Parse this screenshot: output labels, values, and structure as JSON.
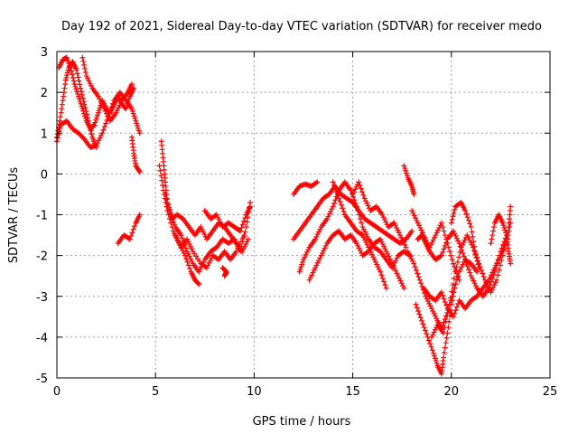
{
  "chart_data": {
    "type": "scatter",
    "title": "Day 192 of 2021, Sidereal Day-to-day VTEC variation (SDTVAR) for receiver medo",
    "xlabel": "GPS time / hours",
    "ylabel": "SDTVAR / TECUs",
    "xlim": [
      0,
      25
    ],
    "ylim": [
      -5,
      3
    ],
    "xticks": [
      0,
      5,
      10,
      15,
      20,
      25
    ],
    "yticks": [
      -5,
      -4,
      -3,
      -2,
      -1,
      0,
      1,
      2,
      3
    ],
    "xtick_labels": [
      "0",
      "5",
      "10",
      "15",
      "20",
      "25"
    ],
    "ytick_labels": [
      "-5",
      "-4",
      "-3",
      "-2",
      "-1",
      "0",
      "1",
      "2",
      "3"
    ],
    "grid": true,
    "marker": "plus",
    "color": "#ff0000",
    "tracks": [
      [
        [
          0.0,
          0.8
        ],
        [
          0.2,
          1.2
        ],
        [
          0.5,
          1.3
        ],
        [
          0.8,
          1.1
        ],
        [
          1.1,
          1.0
        ],
        [
          1.4,
          0.85
        ],
        [
          1.7,
          0.65
        ],
        [
          2.0,
          0.7
        ],
        [
          2.3,
          1.0
        ],
        [
          2.6,
          1.4
        ],
        [
          2.9,
          1.8
        ],
        [
          3.2,
          2.0
        ],
        [
          3.5,
          1.8
        ],
        [
          3.8,
          1.6
        ],
        [
          4.0,
          1.3
        ],
        [
          4.2,
          1.0
        ]
      ],
      [
        [
          0.1,
          2.6
        ],
        [
          0.3,
          2.8
        ],
        [
          0.5,
          2.85
        ],
        [
          0.7,
          2.6
        ],
        [
          0.9,
          2.2
        ],
        [
          1.1,
          1.9
        ],
        [
          1.3,
          1.6
        ],
        [
          1.5,
          1.3
        ],
        [
          1.7,
          1.1
        ],
        [
          1.9,
          1.2
        ],
        [
          2.1,
          1.5
        ],
        [
          2.3,
          1.8
        ],
        [
          2.5,
          1.6
        ],
        [
          2.7,
          1.5
        ],
        [
          2.9,
          1.7
        ],
        [
          3.1,
          1.9
        ],
        [
          3.3,
          1.7
        ],
        [
          3.5,
          1.6
        ],
        [
          3.7,
          1.9
        ],
        [
          3.9,
          2.1
        ]
      ],
      [
        [
          0.0,
          0.9
        ],
        [
          0.15,
          1.3
        ],
        [
          0.3,
          1.8
        ],
        [
          0.45,
          2.3
        ],
        [
          0.6,
          2.6
        ],
        [
          0.8,
          2.75
        ],
        [
          1.0,
          2.55
        ],
        [
          1.2,
          2.1
        ],
        [
          1.4,
          1.7
        ],
        [
          1.6,
          1.3
        ],
        [
          1.8,
          0.9
        ],
        [
          2.0,
          0.65
        ]
      ],
      [
        [
          1.3,
          2.85
        ],
        [
          1.5,
          2.4
        ],
        [
          1.8,
          2.1
        ],
        [
          2.1,
          1.9
        ],
        [
          2.4,
          1.6
        ],
        [
          2.7,
          1.3
        ],
        [
          3.0,
          1.5
        ],
        [
          3.3,
          1.8
        ],
        [
          3.6,
          2.0
        ],
        [
          3.8,
          2.2
        ]
      ],
      [
        [
          3.8,
          0.9
        ],
        [
          3.9,
          0.5
        ],
        [
          4.0,
          0.2
        ],
        [
          4.2,
          0.05
        ]
      ],
      [
        [
          3.1,
          -1.7
        ],
        [
          3.4,
          -1.5
        ],
        [
          3.7,
          -1.6
        ],
        [
          4.0,
          -1.2
        ],
        [
          4.2,
          -1.0
        ]
      ],
      [
        [
          5.3,
          0.8
        ],
        [
          5.4,
          0.3
        ],
        [
          5.5,
          -0.2
        ],
        [
          5.6,
          -0.7
        ],
        [
          5.8,
          -1.0
        ],
        [
          6.0,
          -1.3
        ],
        [
          6.3,
          -1.5
        ],
        [
          6.6,
          -1.9
        ],
        [
          6.9,
          -2.2
        ],
        [
          7.2,
          -2.4
        ],
        [
          7.5,
          -2.1
        ],
        [
          7.8,
          -1.9
        ],
        [
          8.1,
          -1.8
        ],
        [
          8.4,
          -1.6
        ],
        [
          8.7,
          -1.7
        ],
        [
          9.0,
          -1.6
        ],
        [
          9.3,
          -1.9
        ],
        [
          9.6,
          -1.3
        ],
        [
          9.8,
          -0.7
        ]
      ],
      [
        [
          5.2,
          0.2
        ],
        [
          5.4,
          -0.4
        ],
        [
          5.6,
          -0.9
        ],
        [
          5.9,
          -1.4
        ],
        [
          6.2,
          -1.7
        ],
        [
          6.5,
          -2.0
        ],
        [
          6.8,
          -2.4
        ],
        [
          7.0,
          -2.6
        ],
        [
          7.2,
          -2.7
        ]
      ],
      [
        [
          5.5,
          -0.5
        ],
        [
          5.8,
          -1.1
        ],
        [
          6.1,
          -1.0
        ],
        [
          6.4,
          -1.1
        ],
        [
          6.7,
          -1.3
        ],
        [
          7.0,
          -1.5
        ],
        [
          7.3,
          -1.3
        ],
        [
          7.6,
          -1.6
        ],
        [
          7.9,
          -1.4
        ],
        [
          8.2,
          -1.2
        ],
        [
          8.5,
          -1.3
        ],
        [
          8.8,
          -1.5
        ],
        [
          9.1,
          -1.7
        ],
        [
          9.4,
          -1.9
        ],
        [
          9.7,
          -1.6
        ]
      ],
      [
        [
          6.0,
          -1.5
        ],
        [
          6.3,
          -1.8
        ],
        [
          6.6,
          -1.6
        ],
        [
          6.9,
          -1.9
        ],
        [
          7.3,
          -2.2
        ],
        [
          7.6,
          -2.3
        ],
        [
          7.9,
          -2.0
        ],
        [
          8.2,
          -2.1
        ],
        [
          8.5,
          -1.9
        ],
        [
          8.8,
          -2.1
        ],
        [
          9.1,
          -1.9
        ],
        [
          9.5,
          -1.5
        ]
      ],
      [
        [
          8.4,
          -2.3
        ],
        [
          8.6,
          -2.4
        ],
        [
          8.5,
          -2.5
        ]
      ],
      [
        [
          7.5,
          -0.9
        ],
        [
          7.8,
          -1.1
        ],
        [
          8.1,
          -1.0
        ],
        [
          8.4,
          -1.3
        ],
        [
          8.7,
          -1.2
        ],
        [
          9.0,
          -1.3
        ],
        [
          9.3,
          -1.4
        ],
        [
          9.6,
          -1.0
        ],
        [
          9.8,
          -0.8
        ]
      ],
      [
        [
          12.0,
          -0.5
        ],
        [
          12.3,
          -0.3
        ],
        [
          12.6,
          -0.25
        ],
        [
          12.9,
          -0.3
        ],
        [
          13.2,
          -0.2
        ]
      ],
      [
        [
          12.0,
          -1.6
        ],
        [
          12.3,
          -1.4
        ],
        [
          12.6,
          -1.2
        ],
        [
          12.9,
          -1.0
        ],
        [
          13.2,
          -0.8
        ],
        [
          13.5,
          -0.6
        ],
        [
          13.8,
          -0.5
        ],
        [
          14.1,
          -0.3
        ],
        [
          14.4,
          -0.5
        ],
        [
          14.7,
          -0.6
        ],
        [
          15.0,
          -0.7
        ],
        [
          15.3,
          -0.9
        ],
        [
          15.6,
          -1.1
        ],
        [
          15.9,
          -1.2
        ],
        [
          16.2,
          -1.3
        ],
        [
          16.5,
          -1.4
        ],
        [
          16.8,
          -1.5
        ],
        [
          17.1,
          -1.6
        ],
        [
          17.4,
          -1.7
        ],
        [
          17.7,
          -1.6
        ],
        [
          18.0,
          -1.4
        ]
      ],
      [
        [
          12.3,
          -2.4
        ],
        [
          12.5,
          -2.1
        ],
        [
          12.8,
          -1.8
        ],
        [
          13.1,
          -1.6
        ],
        [
          13.4,
          -1.3
        ],
        [
          13.7,
          -1.1
        ],
        [
          14.0,
          -0.8
        ],
        [
          14.3,
          -0.4
        ],
        [
          14.6,
          -0.2
        ],
        [
          14.9,
          -0.4
        ],
        [
          15.2,
          -0.8
        ],
        [
          15.5,
          -1.3
        ],
        [
          15.8,
          -1.6
        ],
        [
          16.1,
          -1.8
        ],
        [
          16.4,
          -1.9
        ],
        [
          16.7,
          -2.1
        ],
        [
          17.0,
          -2.3
        ],
        [
          17.3,
          -2.0
        ],
        [
          17.6,
          -1.9
        ],
        [
          17.9,
          -2.0
        ]
      ],
      [
        [
          12.8,
          -2.6
        ],
        [
          13.1,
          -2.3
        ],
        [
          13.4,
          -2.0
        ],
        [
          13.7,
          -1.7
        ],
        [
          14.0,
          -1.5
        ],
        [
          14.3,
          -1.4
        ],
        [
          14.6,
          -1.6
        ],
        [
          14.9,
          -1.5
        ],
        [
          15.2,
          -1.7
        ],
        [
          15.5,
          -2.0
        ],
        [
          15.8,
          -1.9
        ],
        [
          16.1,
          -1.7
        ],
        [
          16.4,
          -1.6
        ],
        [
          16.7,
          -1.9
        ],
        [
          17.0,
          -2.2
        ],
        [
          17.3,
          -2.5
        ],
        [
          17.6,
          -2.8
        ]
      ],
      [
        [
          14.0,
          -0.2
        ],
        [
          14.3,
          -0.6
        ],
        [
          14.6,
          -1.0
        ],
        [
          14.9,
          -1.2
        ],
        [
          15.2,
          -1.4
        ],
        [
          15.5,
          -1.5
        ],
        [
          15.8,
          -1.8
        ],
        [
          16.1,
          -2.1
        ],
        [
          16.4,
          -2.4
        ],
        [
          16.7,
          -2.8
        ]
      ],
      [
        [
          15.0,
          -0.5
        ],
        [
          15.3,
          -0.2
        ],
        [
          15.6,
          -0.6
        ],
        [
          15.9,
          -0.9
        ],
        [
          16.2,
          -0.8
        ],
        [
          16.5,
          -1.0
        ],
        [
          16.8,
          -1.3
        ],
        [
          17.1,
          -1.2
        ],
        [
          17.4,
          -1.5
        ],
        [
          17.7,
          -1.8
        ]
      ],
      [
        [
          17.6,
          0.2
        ],
        [
          17.8,
          -0.1
        ],
        [
          18.0,
          -0.3
        ],
        [
          18.1,
          -0.5
        ]
      ],
      [
        [
          18.3,
          -1.6
        ],
        [
          18.5,
          -1.5
        ],
        [
          18.7,
          -1.7
        ],
        [
          18.9,
          -1.9
        ],
        [
          19.2,
          -2.1
        ],
        [
          19.5,
          -2.0
        ],
        [
          19.8,
          -1.6
        ],
        [
          20.1,
          -1.4
        ],
        [
          20.4,
          -1.7
        ],
        [
          20.7,
          -2.1
        ],
        [
          21.0,
          -2.5
        ],
        [
          21.3,
          -2.8
        ],
        [
          21.6,
          -3.0
        ],
        [
          21.9,
          -2.8
        ],
        [
          22.2,
          -2.4
        ],
        [
          22.5,
          -1.9
        ],
        [
          22.8,
          -1.5
        ]
      ],
      [
        [
          17.8,
          -1.9
        ],
        [
          18.1,
          -2.2
        ],
        [
          18.4,
          -2.6
        ],
        [
          18.7,
          -3.0
        ],
        [
          19.0,
          -3.3
        ],
        [
          19.3,
          -3.6
        ],
        [
          19.5,
          -3.8
        ],
        [
          19.8,
          -3.4
        ],
        [
          20.1,
          -2.9
        ],
        [
          20.4,
          -2.4
        ],
        [
          20.7,
          -2.1
        ],
        [
          21.0,
          -2.2
        ],
        [
          21.3,
          -2.4
        ]
      ],
      [
        [
          18.2,
          -3.2
        ],
        [
          18.5,
          -3.6
        ],
        [
          18.8,
          -4.0
        ],
        [
          19.1,
          -4.4
        ],
        [
          19.3,
          -4.7
        ],
        [
          19.5,
          -4.9
        ],
        [
          19.6,
          -4.5
        ],
        [
          19.8,
          -3.9
        ],
        [
          20.0,
          -3.2
        ],
        [
          20.2,
          -2.7
        ]
      ],
      [
        [
          18.6,
          -2.8
        ],
        [
          18.9,
          -3.0
        ],
        [
          19.2,
          -3.1
        ],
        [
          19.5,
          -2.9
        ],
        [
          19.8,
          -3.3
        ],
        [
          20.1,
          -3.5
        ],
        [
          20.4,
          -3.1
        ],
        [
          20.7,
          -3.3
        ],
        [
          21.0,
          -3.1
        ],
        [
          21.3,
          -3.0
        ],
        [
          21.6,
          -2.8
        ],
        [
          21.9,
          -2.6
        ],
        [
          22.2,
          -2.3
        ],
        [
          22.5,
          -2.0
        ],
        [
          22.8,
          -1.7
        ],
        [
          23.0,
          -1.2
        ]
      ],
      [
        [
          19.0,
          -4.0
        ],
        [
          19.3,
          -3.7
        ],
        [
          19.6,
          -3.9
        ],
        [
          19.9,
          -3.2
        ],
        [
          20.2,
          -2.4
        ],
        [
          20.5,
          -1.8
        ],
        [
          20.8,
          -1.5
        ],
        [
          21.1,
          -1.8
        ],
        [
          21.4,
          -2.2
        ],
        [
          21.7,
          -2.6
        ],
        [
          22.0,
          -2.9
        ],
        [
          22.3,
          -2.6
        ],
        [
          22.6,
          -2.0
        ],
        [
          22.9,
          -1.3
        ],
        [
          23.0,
          -0.8
        ]
      ],
      [
        [
          20.0,
          -1.2
        ],
        [
          20.2,
          -0.8
        ],
        [
          20.5,
          -0.7
        ],
        [
          20.7,
          -0.9
        ],
        [
          21.0,
          -1.3
        ],
        [
          21.2,
          -1.9
        ],
        [
          21.4,
          -2.3
        ]
      ],
      [
        [
          22.0,
          -1.7
        ],
        [
          22.2,
          -1.2
        ],
        [
          22.4,
          -1.0
        ],
        [
          22.6,
          -1.2
        ],
        [
          22.8,
          -1.5
        ],
        [
          22.9,
          -1.9
        ],
        [
          23.0,
          -2.2
        ]
      ],
      [
        [
          18.0,
          -0.9
        ],
        [
          18.3,
          -1.2
        ],
        [
          18.6,
          -1.5
        ],
        [
          18.9,
          -1.8
        ],
        [
          19.2,
          -1.5
        ],
        [
          19.5,
          -1.2
        ],
        [
          19.8,
          -1.7
        ],
        [
          20.1,
          -2.2
        ],
        [
          20.4,
          -2.6
        ]
      ]
    ]
  }
}
